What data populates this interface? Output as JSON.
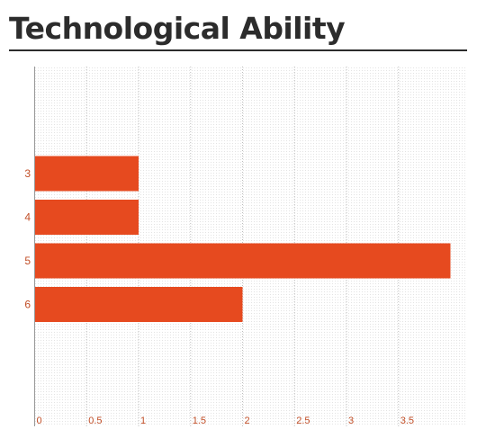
{
  "page": {
    "title": "Technological Ability"
  },
  "colors": {
    "bar": "#e64a1f",
    "axis_label": "#c24f28",
    "grid": "#bdbdbd",
    "title": "#2c2c2c"
  },
  "chart_data": {
    "type": "bar",
    "orientation": "horizontal",
    "title": "Technological Ability",
    "xlabel": "",
    "ylabel": "",
    "categories": [
      "3",
      "4",
      "5",
      "6"
    ],
    "values": [
      1,
      1,
      4,
      2
    ],
    "x_ticks": [
      "0",
      "0.5",
      "1",
      "1.5",
      "2",
      "2.5",
      "3",
      "3.5"
    ],
    "xlim": [
      0,
      4
    ],
    "grid": true,
    "legend": "none"
  }
}
